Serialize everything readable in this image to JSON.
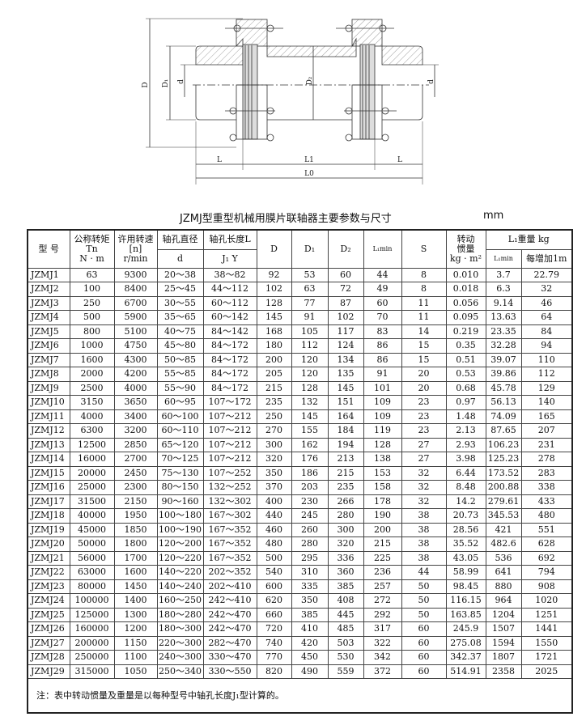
{
  "drawing": {
    "labels": {
      "D": "D",
      "D1": "D₁",
      "D2": "D₂",
      "d_left": "d",
      "d_right": "d",
      "L_left": "L",
      "L1": "L1",
      "L_right": "L",
      "L0": "L0"
    }
  },
  "title": "JZMJ型重型机械用膜片联轴器主要参数与尺寸",
  "unit": "mm",
  "headers": {
    "model": "型 号",
    "torque": [
      "公称转矩",
      "Tn",
      "N · m"
    ],
    "speed": [
      "许用转速",
      "[n]",
      "r/min"
    ],
    "bore_d": [
      "轴孔直径",
      "d"
    ],
    "bore_L": [
      "轴孔长度L",
      "J₁  Y"
    ],
    "D": "D",
    "D1": "D₁",
    "D2": "D₂",
    "Lmin": "L₁min",
    "S": "S",
    "inertia": [
      "转动",
      "惯量",
      "kg · m²"
    ],
    "weight": [
      "L₁重量 kg",
      "L₁min",
      "每增加1m"
    ]
  },
  "rows": [
    [
      "JZMJ1",
      "63",
      "9300",
      "20～38",
      "38～82",
      "92",
      "53",
      "60",
      "44",
      "8",
      "0.010",
      "3.7",
      "22.79"
    ],
    [
      "JZMJ2",
      "100",
      "8400",
      "25～45",
      "44～112",
      "102",
      "63",
      "72",
      "49",
      "8",
      "0.018",
      "6.3",
      "32"
    ],
    [
      "JZMJ3",
      "250",
      "6700",
      "30～55",
      "60～112",
      "128",
      "77",
      "87",
      "60",
      "11",
      "0.056",
      "9.14",
      "46"
    ],
    [
      "JZMJ4",
      "500",
      "5900",
      "35～65",
      "60～142",
      "145",
      "91",
      "102",
      "70",
      "11",
      "0.095",
      "13.63",
      "64"
    ],
    [
      "JZMJ5",
      "800",
      "5100",
      "40～75",
      "84～142",
      "168",
      "105",
      "117",
      "83",
      "14",
      "0.219",
      "23.35",
      "84"
    ],
    [
      "JZMJ6",
      "1000",
      "4750",
      "45～80",
      "84～172",
      "180",
      "112",
      "124",
      "86",
      "15",
      "0.35",
      "32.28",
      "94"
    ],
    [
      "JZMJ7",
      "1600",
      "4300",
      "50～85",
      "84～172",
      "200",
      "120",
      "134",
      "86",
      "15",
      "0.51",
      "39.07",
      "110"
    ],
    [
      "JZMJ8",
      "2000",
      "4200",
      "55～85",
      "84～172",
      "205",
      "120",
      "135",
      "91",
      "20",
      "0.53",
      "39.86",
      "112"
    ],
    [
      "JZMJ9",
      "2500",
      "4000",
      "55～90",
      "84～172",
      "215",
      "128",
      "145",
      "101",
      "20",
      "0.68",
      "45.78",
      "129"
    ],
    [
      "JZMJ10",
      "3150",
      "3650",
      "60～95",
      "107～172",
      "235",
      "132",
      "151",
      "109",
      "23",
      "0.97",
      "56.13",
      "140"
    ],
    [
      "JZMJ11",
      "4000",
      "3400",
      "60～100",
      "107～212",
      "250",
      "145",
      "164",
      "109",
      "23",
      "1.48",
      "74.09",
      "165"
    ],
    [
      "JZMJ12",
      "6300",
      "3200",
      "60～110",
      "107～212",
      "270",
      "155",
      "184",
      "119",
      "23",
      "2.13",
      "87.65",
      "207"
    ],
    [
      "JZMJ13",
      "12500",
      "2850",
      "65～120",
      "107～212",
      "300",
      "162",
      "194",
      "128",
      "27",
      "2.93",
      "106.23",
      "231"
    ],
    [
      "JZMJ14",
      "16000",
      "2700",
      "70～125",
      "107～212",
      "320",
      "176",
      "213",
      "138",
      "27",
      "3.98",
      "125.23",
      "278"
    ],
    [
      "JZMJ15",
      "20000",
      "2450",
      "75～130",
      "107～252",
      "350",
      "186",
      "215",
      "153",
      "32",
      "6.44",
      "173.52",
      "283"
    ],
    [
      "JZMJ16",
      "25000",
      "2300",
      "80～150",
      "132～252",
      "370",
      "203",
      "235",
      "158",
      "32",
      "8.48",
      "200.88",
      "338"
    ],
    [
      "JZMJ17",
      "31500",
      "2150",
      "90～160",
      "132～302",
      "400",
      "230",
      "266",
      "178",
      "32",
      "14.2",
      "279.61",
      "433"
    ],
    [
      "JZMJ18",
      "40000",
      "1950",
      "100～180",
      "167～302",
      "440",
      "245",
      "280",
      "190",
      "38",
      "20.73",
      "345.53",
      "480"
    ],
    [
      "JZMJ19",
      "45000",
      "1850",
      "100～190",
      "167～352",
      "460",
      "260",
      "300",
      "200",
      "38",
      "28.56",
      "421",
      "551"
    ],
    [
      "JZMJ20",
      "50000",
      "1800",
      "120～200",
      "167～352",
      "480",
      "280",
      "320",
      "215",
      "38",
      "35.52",
      "482.6",
      "628"
    ],
    [
      "JZMJ21",
      "56000",
      "1700",
      "120～220",
      "167～352",
      "500",
      "295",
      "336",
      "225",
      "38",
      "43.05",
      "536",
      "692"
    ],
    [
      "JZMJ22",
      "63000",
      "1600",
      "140～220",
      "202～352",
      "540",
      "310",
      "360",
      "236",
      "44",
      "58.99",
      "641",
      "794"
    ],
    [
      "JZMJ23",
      "80000",
      "1450",
      "140～240",
      "202～410",
      "600",
      "335",
      "385",
      "257",
      "50",
      "98.45",
      "880",
      "908"
    ],
    [
      "JZMJ24",
      "100000",
      "1400",
      "160～250",
      "242～410",
      "620",
      "350",
      "408",
      "272",
      "50",
      "116.15",
      "964",
      "1020"
    ],
    [
      "JZMJ25",
      "125000",
      "1300",
      "180～280",
      "242～470",
      "660",
      "385",
      "445",
      "292",
      "50",
      "163.85",
      "1204",
      "1251"
    ],
    [
      "JZMJ26",
      "160000",
      "1200",
      "180～300",
      "242～470",
      "720",
      "410",
      "485",
      "317",
      "60",
      "245.9",
      "1507",
      "1441"
    ],
    [
      "JZMJ27",
      "200000",
      "1150",
      "220～300",
      "282～470",
      "740",
      "420",
      "503",
      "322",
      "60",
      "275.08",
      "1594",
      "1550"
    ],
    [
      "JZMJ28",
      "250000",
      "1100",
      "240～300",
      "330～470",
      "770",
      "450",
      "530",
      "342",
      "60",
      "342.37",
      "1807",
      "1721"
    ],
    [
      "JZMJ29",
      "315000",
      "1050",
      "250～340",
      "330～550",
      "820",
      "490",
      "559",
      "372",
      "60",
      "514.91",
      "2358",
      "2025"
    ]
  ],
  "note": "注：表中转动惯量及重量是以每种型号中轴孔长度J₁型计算的。"
}
